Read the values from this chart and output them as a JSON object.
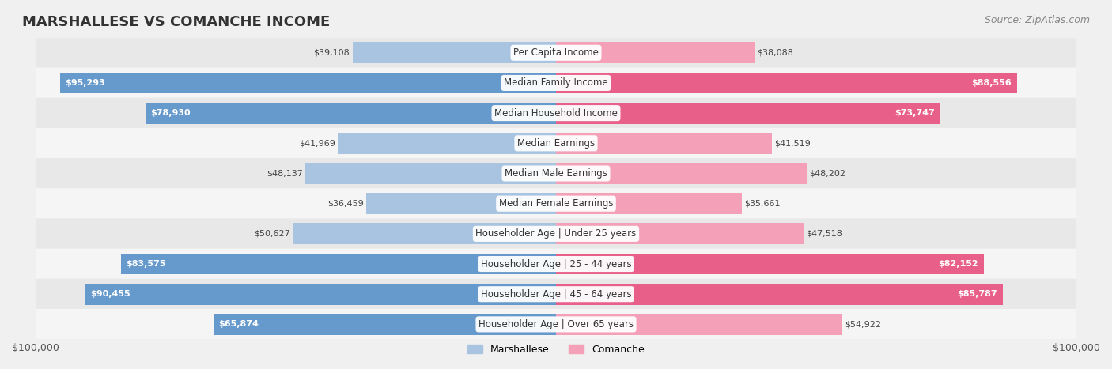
{
  "title": "MARSHALLESE VS COMANCHE INCOME",
  "source": "Source: ZipAtlas.com",
  "categories": [
    "Per Capita Income",
    "Median Family Income",
    "Median Household Income",
    "Median Earnings",
    "Median Male Earnings",
    "Median Female Earnings",
    "Householder Age | Under 25 years",
    "Householder Age | 25 - 44 years",
    "Householder Age | 45 - 64 years",
    "Householder Age | Over 65 years"
  ],
  "marshallese": [
    39108,
    95293,
    78930,
    41969,
    48137,
    36459,
    50627,
    83575,
    90455,
    65874
  ],
  "comanche": [
    38088,
    88556,
    73747,
    41519,
    48202,
    35661,
    47518,
    82152,
    85787,
    54922
  ],
  "max_val": 100000,
  "marshallese_color": "#a8c4e0",
  "marshallese_dark_color": "#6699cc",
  "comanche_color": "#f4a0b8",
  "comanche_dark_color": "#e8608a",
  "label_color_dark": "#ffffff",
  "label_color_light": "#555555",
  "bg_color": "#f0f0f0",
  "row_bg_even": "#e8e8e8",
  "row_bg_odd": "#f5f5f5",
  "title_fontsize": 13,
  "source_fontsize": 9,
  "label_fontsize": 8.5,
  "value_fontsize": 8.0,
  "legend_fontsize": 9
}
